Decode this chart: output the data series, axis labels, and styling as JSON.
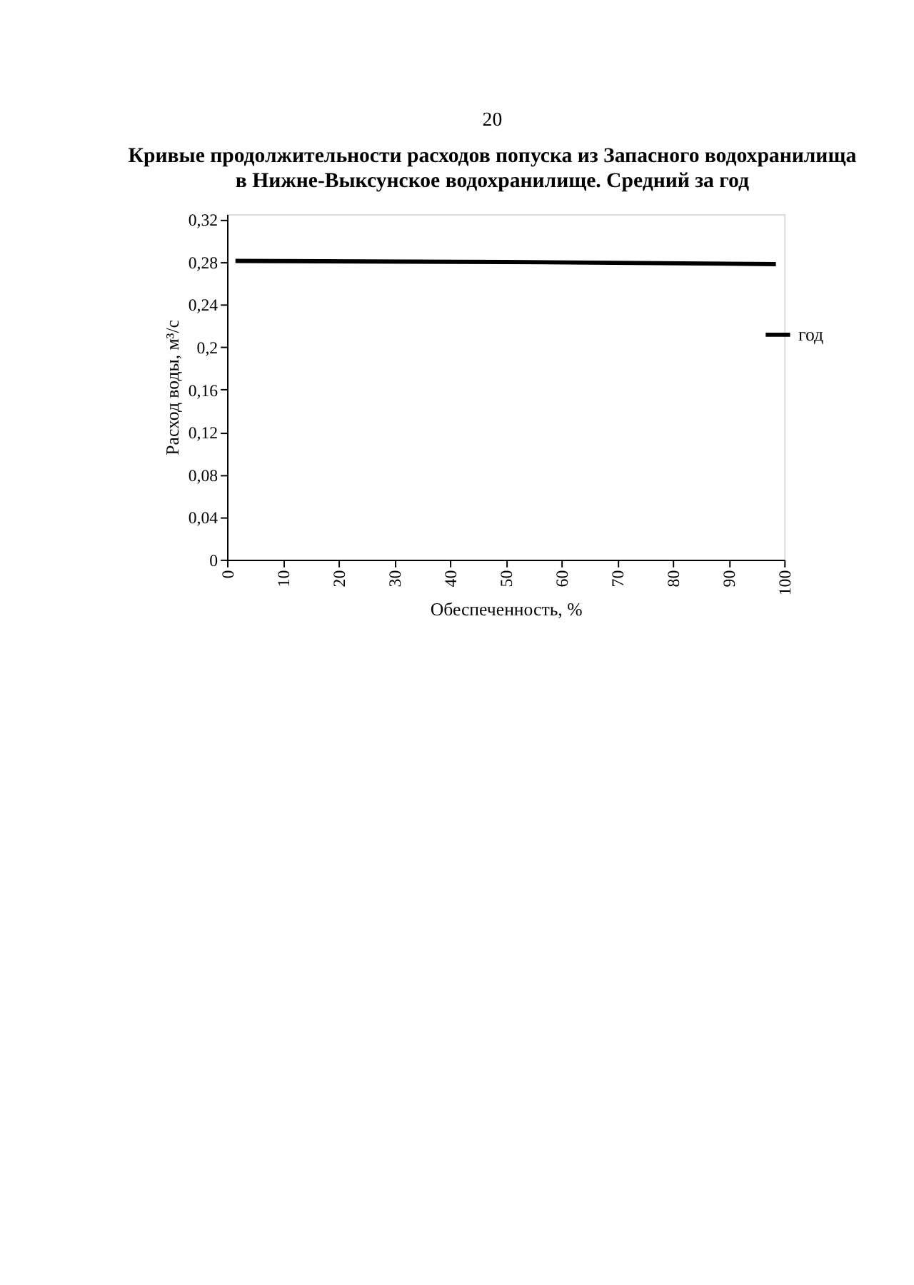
{
  "chart_data": {
    "type": "line",
    "title": [
      "Кривые продолжительности расходов попуска из Запасного водохранилища",
      "в Нижне-Выксунское водохранилище. Средний за год"
    ],
    "xlabel": "Обеспеченность, %",
    "ylabel": "Расход воды, м³/с",
    "annotations": [
      "20"
    ],
    "series": [
      {
        "name": "год",
        "color": "#000000",
        "x": [
          1.5,
          50,
          98.5
        ],
        "values": [
          0.281,
          0.28,
          0.278
        ]
      }
    ],
    "xlim": [
      0,
      100
    ],
    "xticks": [
      0,
      10,
      20,
      30,
      40,
      50,
      60,
      70,
      80,
      90,
      100
    ],
    "ylim": [
      0,
      0.325
    ],
    "yticks": [
      {
        "value": 0,
        "label": "0"
      },
      {
        "value": 0.04,
        "label": "0,04"
      },
      {
        "value": 0.08,
        "label": "0,08"
      },
      {
        "value": 0.12,
        "label": "0,12"
      },
      {
        "value": 0.16,
        "label": "0,16"
      },
      {
        "value": 0.2,
        "label": "0,2"
      },
      {
        "value": 0.24,
        "label": "0,24"
      },
      {
        "value": 0.28,
        "label": "0,28"
      },
      {
        "value": 0.32,
        "label": "0,32"
      }
    ],
    "grid": false,
    "legend": "right",
    "marker": "none",
    "line_style": "solid"
  }
}
